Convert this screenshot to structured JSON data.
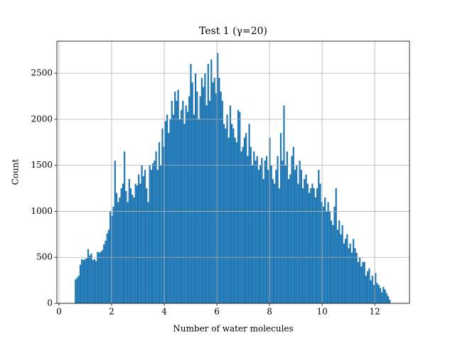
{
  "chart_data": {
    "type": "histogram",
    "title": "Test 1 (γ=20)",
    "x_label": "Number of water molecules",
    "y_label": "Count",
    "color": "#1f77b4",
    "grid": true,
    "xlim": [
      -0.08,
      13.32
    ],
    "ylim": [
      0,
      2848
    ],
    "xticks": [
      0,
      2,
      4,
      6,
      8,
      10,
      12
    ],
    "yticks": [
      0,
      500,
      1000,
      1500,
      2000,
      2500
    ],
    "bins": [
      0.6,
      0.66,
      0.72,
      0.78,
      0.84,
      0.9,
      0.96,
      1.02,
      1.08,
      1.14,
      1.2,
      1.26,
      1.32,
      1.38,
      1.44,
      1.5,
      1.56,
      1.62,
      1.68,
      1.74,
      1.8,
      1.86,
      1.92,
      1.98,
      2.04,
      2.1,
      2.16,
      2.22,
      2.28,
      2.34,
      2.4,
      2.46,
      2.52,
      2.58,
      2.64,
      2.7,
      2.76,
      2.82,
      2.88,
      2.94,
      3.0,
      3.06,
      3.12,
      3.18,
      3.24,
      3.3,
      3.36,
      3.42,
      3.48,
      3.54,
      3.6,
      3.66,
      3.72,
      3.78,
      3.84,
      3.9,
      3.96,
      4.02,
      4.08,
      4.14,
      4.2,
      4.26,
      4.32,
      4.38,
      4.44,
      4.5,
      4.56,
      4.62,
      4.68,
      4.74,
      4.8,
      4.86,
      4.92,
      4.98,
      5.04,
      5.1,
      5.16,
      5.22,
      5.28,
      5.34,
      5.4,
      5.46,
      5.52,
      5.58,
      5.64,
      5.7,
      5.76,
      5.82,
      5.88,
      5.94,
      6.0,
      6.06,
      6.12,
      6.18,
      6.24,
      6.3,
      6.36,
      6.42,
      6.48,
      6.54,
      6.6,
      6.66,
      6.72,
      6.78,
      6.84,
      6.9,
      6.96,
      7.02,
      7.08,
      7.14,
      7.2,
      7.26,
      7.32,
      7.38,
      7.44,
      7.5,
      7.56,
      7.62,
      7.68,
      7.74,
      7.8,
      7.86,
      7.92,
      7.98,
      8.04,
      8.1,
      8.16,
      8.22,
      8.28,
      8.34,
      8.4,
      8.46,
      8.52,
      8.58,
      8.64,
      8.7,
      8.76,
      8.82,
      8.88,
      8.94,
      9.0,
      9.06,
      9.12,
      9.18,
      9.24,
      9.3,
      9.36,
      9.42,
      9.48,
      9.54,
      9.6,
      9.66,
      9.72,
      9.78,
      9.84,
      9.9,
      9.96,
      10.02,
      10.08,
      10.14,
      10.2,
      10.26,
      10.32,
      10.38,
      10.44,
      10.5,
      10.56,
      10.62,
      10.68,
      10.74,
      10.8,
      10.86,
      10.92,
      10.98,
      11.04,
      11.1,
      11.16,
      11.22,
      11.28,
      11.34,
      11.4,
      11.46,
      11.52,
      11.58,
      11.64,
      11.7,
      11.76,
      11.82,
      11.88,
      11.94,
      12.0,
      12.06,
      12.12,
      12.18,
      12.24,
      12.3,
      12.36,
      12.42,
      12.48,
      12.54,
      12.6
    ],
    "values": [
      260,
      280,
      300,
      420,
      480,
      470,
      480,
      490,
      590,
      520,
      540,
      470,
      480,
      460,
      560,
      550,
      560,
      580,
      640,
      680,
      760,
      800,
      1000,
      950,
      1050,
      1550,
      1200,
      1100,
      1150,
      1250,
      1300,
      1650,
      1220,
      1100,
      1350,
      1250,
      1180,
      1150,
      1300,
      1280,
      1400,
      1300,
      1500,
      1380,
      1450,
      1250,
      1100,
      1500,
      1450,
      1520,
      1550,
      1650,
      1450,
      1750,
      1500,
      1900,
      1700,
      1980,
      2050,
      1850,
      2000,
      2200,
      2050,
      2300,
      2200,
      2320,
      2000,
      2100,
      2200,
      1950,
      2150,
      2080,
      2250,
      2600,
      2400,
      2050,
      2500,
      2300,
      2000,
      2250,
      2450,
      2350,
      2500,
      2150,
      2600,
      2200,
      2650,
      2400,
      2450,
      2280,
      2720,
      2450,
      2300,
      2200,
      1950,
      1900,
      2050,
      1800,
      2150,
      1950,
      1900,
      1800,
      1750,
      2100,
      2080,
      1650,
      1700,
      1800,
      1850,
      1600,
      1950,
      1700,
      1500,
      1650,
      1550,
      1600,
      1450,
      1500,
      1580,
      1350,
      1550,
      1600,
      1450,
      1800,
      1500,
      1350,
      1300,
      1450,
      1600,
      1250,
      1850,
      1550,
      2150,
      1500,
      1650,
      1350,
      1400,
      1600,
      1700,
      1450,
      1500,
      1300,
      1550,
      1450,
      1250,
      1350,
      1400,
      1300,
      1200,
      1250,
      1300,
      1250,
      1150,
      1250,
      1450,
      1300,
      1100,
      1050,
      1150,
      1000,
      1100,
      1000,
      900,
      850,
      1050,
      1250,
      800,
      900,
      750,
      850,
      650,
      700,
      750,
      600,
      650,
      550,
      700,
      600,
      550,
      450,
      500,
      400,
      450,
      450,
      300,
      350,
      380,
      250,
      300,
      200,
      330,
      220,
      200,
      170,
      120,
      180,
      150,
      110,
      80,
      40
    ]
  }
}
